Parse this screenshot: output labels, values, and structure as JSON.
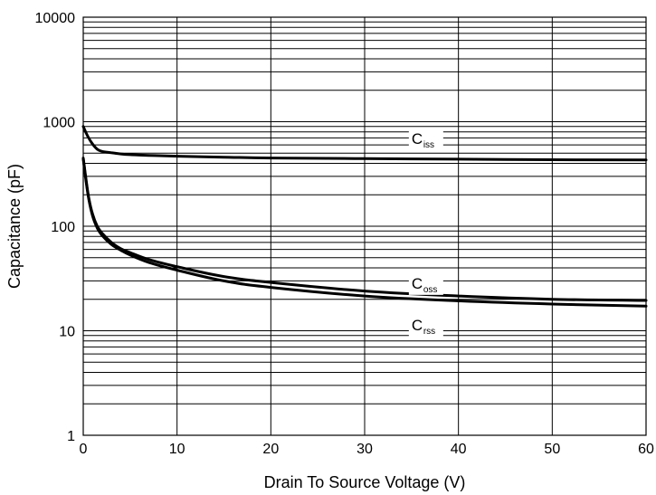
{
  "chart_data": {
    "type": "line",
    "title": "",
    "xlabel": "Drain To Source Voltage (V)",
    "ylabel": "Capacitance (pF)",
    "xlim": [
      0,
      60
    ],
    "ylim": [
      1,
      10000
    ],
    "yscale": "log",
    "grid": true,
    "legend": "none",
    "x_ticks": [
      "0",
      "10",
      "20",
      "30",
      "40",
      "50",
      "60"
    ],
    "y_ticks": [
      "1",
      "10",
      "100",
      "1000",
      "10000"
    ],
    "line_color": "#000000",
    "series": [
      {
        "name": "Ciss",
        "label_main": "C",
        "label_sub": "iss",
        "x": [
          0,
          0.5,
          1,
          1.5,
          2,
          3,
          4,
          5,
          7,
          10,
          15,
          20,
          30,
          40,
          50,
          60
        ],
        "values": [
          900,
          720,
          610,
          545,
          520,
          505,
          492,
          484,
          476,
          468,
          458,
          450,
          443,
          438,
          433,
          430
        ]
      },
      {
        "name": "Coss",
        "label_main": "C",
        "label_sub": "oss",
        "x": [
          0,
          0.3,
          0.6,
          1,
          1.5,
          2,
          3,
          4,
          5,
          7,
          10,
          15,
          20,
          30,
          40,
          50,
          60
        ],
        "values": [
          450,
          280,
          185,
          130,
          100,
          86,
          70,
          61,
          56,
          48,
          41,
          33,
          29,
          24,
          21.5,
          20,
          19.5
        ]
      },
      {
        "name": "Crss",
        "label_main": "C",
        "label_sub": "rss",
        "x": [
          0,
          0.3,
          0.6,
          1,
          1.5,
          2,
          3,
          4,
          5,
          7,
          10,
          15,
          20,
          30,
          40,
          50,
          60
        ],
        "values": [
          440,
          270,
          180,
          125,
          96,
          82,
          67,
          59,
          53,
          45,
          38,
          30,
          26,
          21.5,
          19.3,
          18,
          17.2
        ]
      }
    ]
  }
}
